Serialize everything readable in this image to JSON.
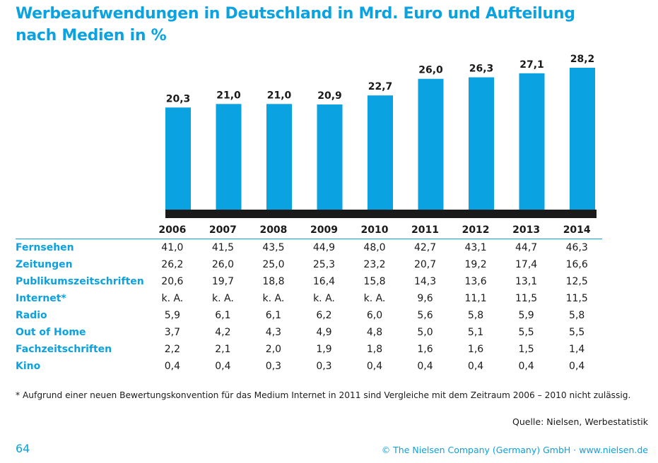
{
  "title": {
    "line1": "Werbeaufwendungen in Deutschland in Mrd. Euro und Aufteilung",
    "line2": "nach Medien in %"
  },
  "chart_data": {
    "type": "bar",
    "categories": [
      "2006",
      "2007",
      "2008",
      "2009",
      "2010",
      "2011",
      "2012",
      "2013",
      "2014"
    ],
    "values": [
      20.3,
      21.0,
      21.0,
      20.9,
      22.7,
      26.0,
      26.3,
      27.1,
      28.2
    ],
    "value_labels": [
      "20,3",
      "21,0",
      "21,0",
      "20,9",
      "22,7",
      "26,0",
      "26,3",
      "27,1",
      "28,2"
    ],
    "title": "Werbeaufwendungen in Deutschland in Mrd. Euro und Aufteilung nach Medien in %",
    "xlabel": "",
    "ylabel": "",
    "ylim": [
      0,
      28.2
    ],
    "grid": false,
    "colors": {
      "bar": "#0aa2e0",
      "axis": "#1a1a1a"
    }
  },
  "table": {
    "columns": [
      "2006",
      "2007",
      "2008",
      "2009",
      "2010",
      "2011",
      "2012",
      "2013",
      "2014"
    ],
    "rows": [
      {
        "name": "Fernsehen",
        "values": [
          "41,0",
          "41,5",
          "43,5",
          "44,9",
          "48,0",
          "42,7",
          "43,1",
          "44,7",
          "46,3"
        ]
      },
      {
        "name": "Zeitungen",
        "values": [
          "26,2",
          "26,0",
          "25,0",
          "25,3",
          "23,2",
          "20,7",
          "19,2",
          "17,4",
          "16,6"
        ]
      },
      {
        "name": "Publikumszeitschriften",
        "values": [
          "20,6",
          "19,7",
          "18,8",
          "16,4",
          "15,8",
          "14,3",
          "13,6",
          "13,1",
          "12,5"
        ]
      },
      {
        "name": "Internet*",
        "values": [
          "k. A.",
          "k. A.",
          "k. A.",
          "k. A.",
          "k. A.",
          "9,6",
          "11,1",
          "11,5",
          "11,5"
        ]
      },
      {
        "name": "Radio",
        "values": [
          "5,9",
          "6,1",
          "6,1",
          "6,2",
          "6,0",
          "5,6",
          "5,8",
          "5,9",
          "5,8"
        ]
      },
      {
        "name": "Out of Home",
        "values": [
          "3,7",
          "4,2",
          "4,3",
          "4,9",
          "4,8",
          "5,0",
          "5,1",
          "5,5",
          "5,5"
        ]
      },
      {
        "name": "Fachzeitschriften",
        "values": [
          "2,2",
          "2,1",
          "2,0",
          "1,9",
          "1,8",
          "1,6",
          "1,6",
          "1,5",
          "1,4"
        ]
      },
      {
        "name": "Kino",
        "values": [
          "0,4",
          "0,4",
          "0,3",
          "0,3",
          "0,4",
          "0,4",
          "0,4",
          "0,4",
          "0,4"
        ]
      }
    ]
  },
  "footnote": "* Aufgrund einer neuen Bewertungskonvention für das Medium Internet in 2011 sind Vergleiche mit dem Zeitraum 2006 – 2010 nicht zulässig.",
  "source": "Quelle: Nielsen, Werbestatistik",
  "page_number": "64",
  "copyright": "© The Nielsen Company (Germany) GmbH · www.nielsen.de"
}
